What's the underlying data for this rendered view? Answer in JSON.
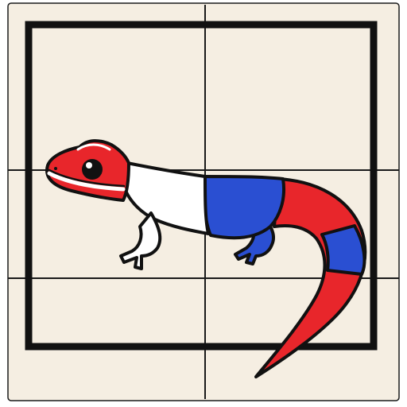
{
  "image": {
    "subject": "lizard-icon",
    "colors": {
      "background": "#ffffff",
      "tile": "#f5eee2",
      "tile_border": "#1a1a1a",
      "frame": "#111111",
      "grid_line": "#1a1a1a",
      "outline": "#111111",
      "red": "#e8262b",
      "white": "#ffffff",
      "blue": "#2a4fd2",
      "eye": "#111111",
      "eye_highlight": "#ffffff"
    }
  }
}
